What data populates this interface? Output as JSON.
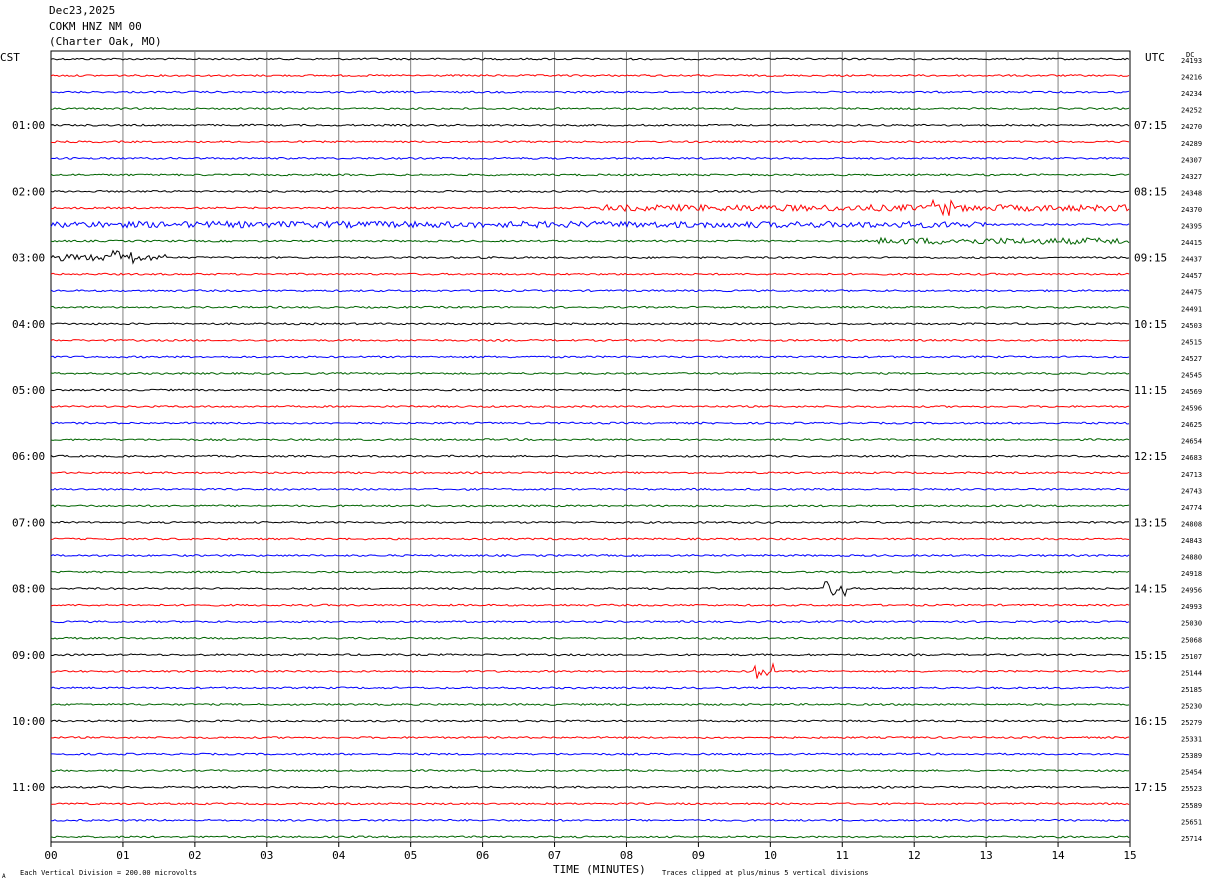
{
  "header": {
    "date": "Dec23,2025",
    "station": "COKM HNZ NM 00",
    "location": "(Charter Oak, MO)"
  },
  "left_zone_label": "CST",
  "right_zone_label": "UTC",
  "dc_label": "DC",
  "footer": {
    "scale_note": "Each Vertical Division =  200.00 microvolts",
    "clip_note": "Traces clipped at plus/minus 5 vertical divisions",
    "corner_mark": "A"
  },
  "colors": {
    "black": "#000000",
    "red": "#ff0000",
    "blue": "#0000ff",
    "green": "#006400",
    "grid": "#808080"
  },
  "chart_data": {
    "type": "line",
    "xlabel": "TIME (MINUTES)",
    "xlim": [
      0,
      15
    ],
    "x_ticks": [
      "00",
      "01",
      "02",
      "03",
      "04",
      "05",
      "06",
      "07",
      "08",
      "09",
      "10",
      "11",
      "12",
      "13",
      "14",
      "15"
    ],
    "trace_colors": [
      "black",
      "red",
      "blue",
      "green"
    ],
    "left_hour_labels": [
      "01:00",
      "02:00",
      "03:00",
      "04:00",
      "05:00",
      "06:00",
      "07:00",
      "08:00",
      "09:00",
      "10:00",
      "11:00"
    ],
    "right_hour_labels": [
      "07:15",
      "08:15",
      "09:15",
      "10:15",
      "11:15",
      "12:15",
      "13:15",
      "14:15",
      "15:15",
      "16:15",
      "17:15"
    ],
    "dc_offsets": [
      24193,
      24216,
      24234,
      24252,
      24270,
      24289,
      24307,
      24327,
      24348,
      24370,
      24395,
      24415,
      24437,
      24457,
      24475,
      24491,
      24503,
      24515,
      24527,
      24545,
      24569,
      24596,
      24625,
      24654,
      24683,
      24713,
      24743,
      24774,
      24808,
      24843,
      24880,
      24918,
      24956,
      24993,
      25030,
      25068,
      25107,
      25144,
      25185,
      25230,
      25279,
      25331,
      25389,
      25454,
      25523,
      25589,
      25651,
      25714
    ],
    "events": [
      {
        "trace": 9,
        "start_min": 7.6,
        "end_min": 15,
        "amplitude": "elevated",
        "peak_min": 12.4
      },
      {
        "trace": 10,
        "start_min": 0,
        "end_min": 13,
        "amplitude": "elevated"
      },
      {
        "trace": 11,
        "start_min": 11.5,
        "end_min": 15,
        "amplitude": "elevated"
      },
      {
        "trace": 12,
        "start_min": 0,
        "end_min": 1.6,
        "amplitude": "elevated",
        "peak_min": 1.0
      },
      {
        "trace": 32,
        "peak_min": 10.9,
        "amplitude": "spike"
      },
      {
        "trace": 37,
        "peak_min": 9.9,
        "amplitude": "spike"
      }
    ]
  }
}
